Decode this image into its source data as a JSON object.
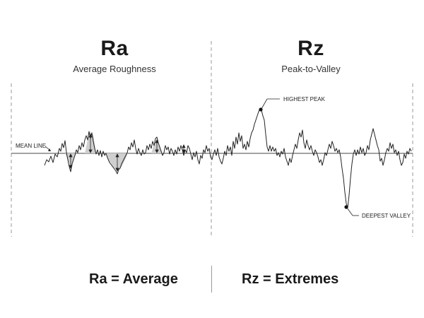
{
  "left_panel": {
    "title": "Ra",
    "subtitle": "Average Roughness"
  },
  "right_panel": {
    "title": "Rz",
    "subtitle": "Peak-to-Valley"
  },
  "annotations": {
    "mean_line": "MEAN LINE",
    "highest_peak": "HIGHEST PEAK",
    "deepest_valley": "DEEPEST VALLEY"
  },
  "summary": {
    "left": "Ra = Average",
    "right": "Rz = Extremes"
  },
  "colors": {
    "profile": "#222222",
    "shaded_area": "#cfcfcf",
    "guide_lines": "#9a9a9a"
  }
}
